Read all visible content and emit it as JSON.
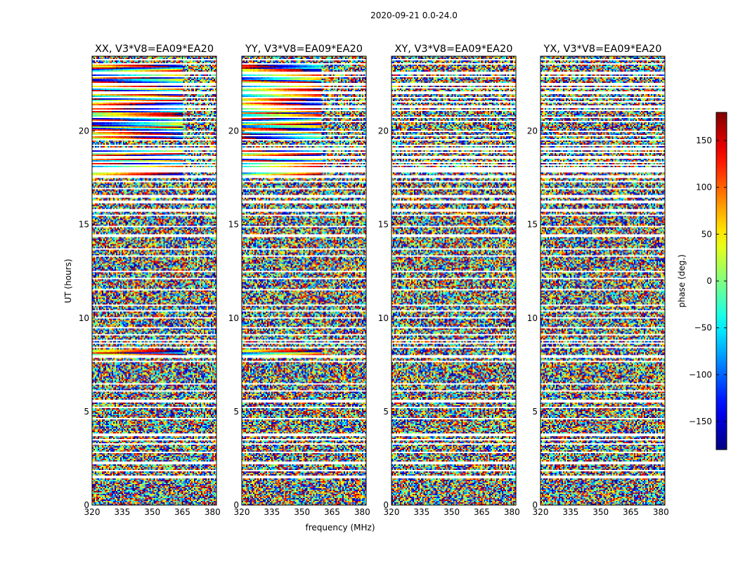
{
  "figure": {
    "suptitle": "2020-09-21 0.0-24.0"
  },
  "chart_data": {
    "type": "heatmap",
    "title": "2020-09-21 0.0-24.0",
    "xlabel": "frequency (MHz)",
    "ylabel": "UT (hours)",
    "xlim": [
      320,
      382
    ],
    "ylim": [
      0,
      24
    ],
    "xticks": [
      320,
      335,
      350,
      365,
      380
    ],
    "yticks": [
      0,
      5,
      10,
      15,
      20
    ],
    "panels": [
      {
        "title": "XX, V3*V8=EA09*EA20",
        "coherent_bands": [
          [
            8.0,
            8.35
          ],
          [
            17.5,
            19.0
          ],
          [
            19.6,
            23.1
          ],
          [
            23.2,
            23.55
          ]
        ],
        "coherent_max_freq": 365
      },
      {
        "title": "YY, V3*V8=EA09*EA20",
        "coherent_bands": [
          [
            8.0,
            8.35
          ],
          [
            17.5,
            19.0
          ],
          [
            19.6,
            23.1
          ],
          [
            23.2,
            23.55
          ]
        ],
        "coherent_max_freq": 360
      },
      {
        "title": "XY, V3*V8=EA09*EA20",
        "coherent_bands": [],
        "coherent_max_freq": 0
      },
      {
        "title": "YX, V3*V8=EA09*EA20",
        "coherent_bands": [],
        "coherent_max_freq": 0
      }
    ],
    "flagged_ut_hours": [
      1.5,
      1.85,
      2.25,
      2.8,
      3.25,
      3.5,
      3.75,
      4.6,
      5.2,
      5.55,
      6.1,
      6.5,
      7.7,
      7.95,
      8.45,
      8.65,
      8.8,
      9.1,
      9.5,
      10.0,
      10.4,
      10.7,
      11.5,
      12.1,
      12.5,
      13.3,
      13.7,
      14.4,
      14.9,
      15.5,
      15.75,
      16.2,
      16.5,
      16.9,
      17.3,
      17.55,
      17.85,
      18.0,
      18.2,
      18.35,
      18.6,
      18.85,
      19.05,
      19.25,
      19.55,
      19.75,
      20.0,
      20.5,
      20.75,
      21.1,
      21.3,
      21.55,
      21.8,
      22.05,
      22.3,
      22.5,
      22.9,
      23.1,
      23.6,
      23.8
    ],
    "colorbar": {
      "label": "phase (deg.)",
      "range": [
        -180,
        180
      ],
      "ticks": [
        -150,
        -100,
        -50,
        0,
        50,
        100,
        150
      ],
      "tick_labels": [
        "−150",
        "−100",
        "−50",
        "0",
        "50",
        "100",
        "150"
      ],
      "colormap": "jet"
    }
  }
}
